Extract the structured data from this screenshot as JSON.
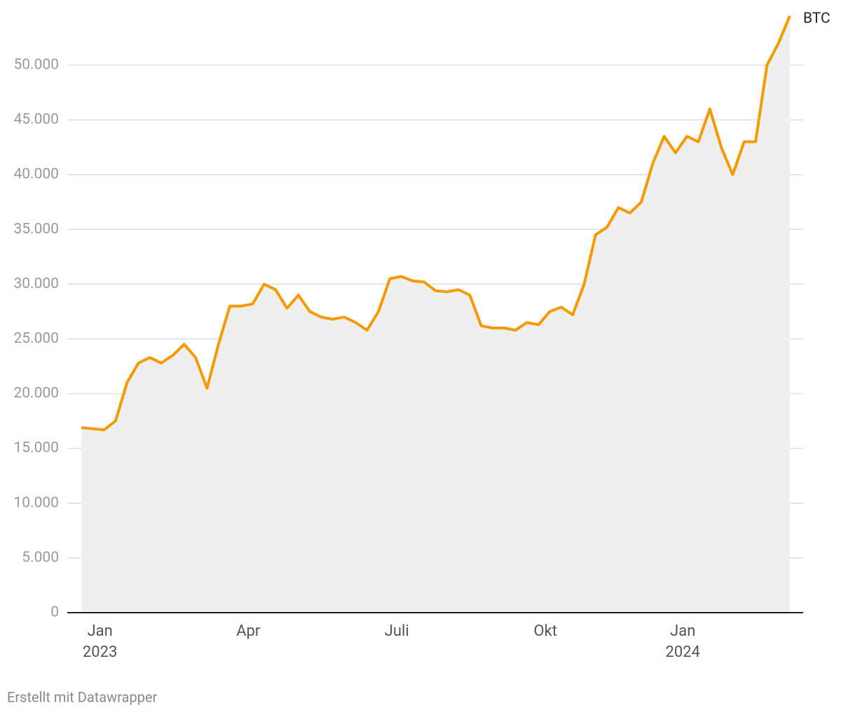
{
  "chart_data": {
    "type": "area-line",
    "series": [
      {
        "name": "BTC",
        "color": "#f59a00",
        "fill": "#efefef",
        "values": [
          16900,
          16800,
          16700,
          17500,
          21000,
          22800,
          23300,
          22800,
          23500,
          24500,
          23300,
          20500,
          24500,
          28000,
          28000,
          28200,
          30000,
          29500,
          27800,
          29000,
          27500,
          27000,
          26800,
          27000,
          26500,
          25800,
          27500,
          30500,
          30700,
          30300,
          30200,
          29400,
          29300,
          29500,
          29000,
          26200,
          26000,
          26000,
          25800,
          26500,
          26300,
          27500,
          27900,
          27200,
          30000,
          34500,
          35200,
          37000,
          36500,
          37500,
          41000,
          43500,
          42000,
          43500,
          43000,
          46000,
          42500,
          40000,
          43000,
          43000,
          50000,
          52000,
          54500
        ]
      }
    ],
    "categories": [
      null,
      null,
      [
        "Jan",
        "2023"
      ],
      null,
      null,
      null,
      null,
      null,
      null,
      null,
      null,
      null,
      null,
      null,
      "Apr",
      null,
      null,
      null,
      null,
      null,
      null,
      null,
      null,
      null,
      null,
      null,
      null,
      "Juli",
      null,
      null,
      null,
      null,
      null,
      null,
      null,
      null,
      null,
      null,
      null,
      null,
      "Okt",
      null,
      null,
      null,
      null,
      null,
      null,
      null,
      null,
      null,
      null,
      null,
      null,
      [
        "Jan",
        "2024"
      ],
      null,
      null,
      null,
      null,
      null,
      null,
      null,
      null,
      null
    ],
    "ylim": [
      0,
      55000
    ],
    "yticks": [
      0,
      {
        "value": 5000,
        "label": "5.000"
      },
      {
        "value": 10000,
        "label": "10.000"
      },
      {
        "value": 15000,
        "label": "15.000"
      },
      {
        "value": 20000,
        "label": "20.000"
      },
      {
        "value": 25000,
        "label": "25.000"
      },
      {
        "value": 30000,
        "label": "30.000"
      },
      {
        "value": 35000,
        "label": "35.000"
      },
      {
        "value": 40000,
        "label": "40.000"
      },
      {
        "value": 45000,
        "label": "45.000"
      },
      {
        "value": 50000,
        "label": "50.000"
      }
    ],
    "grid": true,
    "footer": "Erstellt mit Datawrapper"
  }
}
